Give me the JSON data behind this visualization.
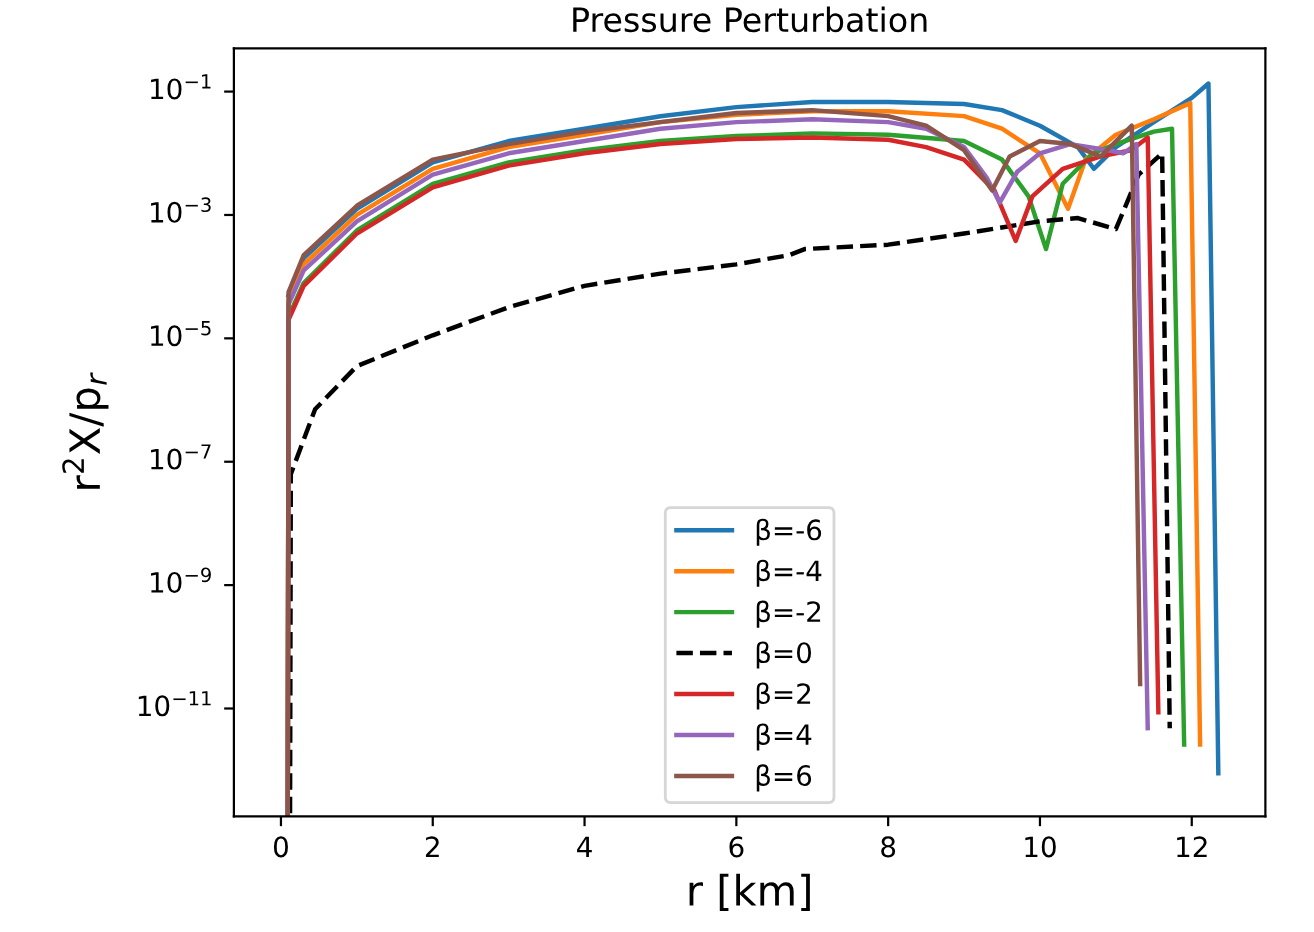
{
  "chart_data": {
    "type": "line",
    "title": "Pressure Perturbation",
    "xlabel": "r [km]",
    "ylabel": "r$^{2}$X/p$_{r}$",
    "log": "y",
    "xlim": [
      -0.62,
      12.97
    ],
    "ylim": [
      1.78e-13,
      0.5
    ],
    "xticks": [
      0,
      2,
      4,
      6,
      8,
      10,
      12
    ],
    "yticks": [
      {
        "value": 1e-11,
        "label": "10$^{−11}$"
      },
      {
        "value": 1e-09,
        "label": "10$^{−9}$"
      },
      {
        "value": 1e-07,
        "label": "10$^{−7}$"
      },
      {
        "value": 1e-05,
        "label": "10$^{−5}$"
      },
      {
        "value": 0.001,
        "label": "10$^{−3}$"
      },
      {
        "value": 0.1,
        "label": "10$^{−1}$"
      }
    ],
    "grid": false,
    "legend": "bottom",
    "series": [
      {
        "name": "β=-6",
        "color": "#1f77b4",
        "line_style": "solid",
        "x": [
          0.1,
          0.3,
          1,
          2,
          3,
          4,
          5,
          6,
          7,
          8,
          9,
          9.5,
          10,
          10.5,
          10.71,
          11,
          11.5,
          12,
          12.22,
          12.35
        ],
        "values": [
          5e-05,
          0.0002,
          0.00126,
          0.0071,
          0.0158,
          0.025,
          0.0398,
          0.056,
          0.068,
          0.068,
          0.063,
          0.05,
          0.028,
          0.0126,
          0.0056,
          0.0126,
          0.032,
          0.079,
          0.135,
          8.9e-13
        ]
      },
      {
        "name": "β=-4",
        "color": "#ff7f0e",
        "line_style": "solid",
        "x": [
          0.09,
          0.1,
          0.3,
          1,
          2,
          3,
          4,
          5,
          6,
          7,
          8,
          9,
          9.5,
          10,
          10.37,
          10.6,
          11,
          11.5,
          11.98,
          12.11
        ],
        "values": [
          2e-13,
          4e-05,
          0.000158,
          0.001,
          0.0056,
          0.0126,
          0.02,
          0.032,
          0.042,
          0.048,
          0.048,
          0.04,
          0.025,
          0.01,
          0.00126,
          0.0079,
          0.02,
          0.0355,
          0.065,
          2.6e-12
        ]
      },
      {
        "name": "β=-2",
        "color": "#2ca02c",
        "line_style": "solid",
        "x": [
          0.09,
          0.1,
          0.3,
          1,
          2,
          3,
          4,
          5,
          6,
          7,
          8,
          9,
          9.5,
          9.85,
          10.08,
          10.3,
          10.7,
          11,
          11.5,
          11.74,
          11.9
        ],
        "values": [
          2e-13,
          2.24e-05,
          7.9e-05,
          0.00056,
          0.0032,
          0.0071,
          0.0112,
          0.0158,
          0.019,
          0.021,
          0.02,
          0.0158,
          0.0079,
          0.002,
          0.00028,
          0.0032,
          0.01,
          0.0141,
          0.0224,
          0.025,
          2.6e-12
        ]
      },
      {
        "name": "β=0",
        "color": "#000000",
        "line_style": "dashed",
        "x": [
          0.12,
          0.13,
          0.45,
          1,
          2,
          3,
          4,
          5,
          6,
          6.7,
          6.9,
          8,
          9,
          10,
          10.5,
          11,
          11.3,
          11.61,
          11.71
        ],
        "values": [
          2e-13,
          6.3e-08,
          7.1e-07,
          3.55e-06,
          1.12e-05,
          3.2e-05,
          7.1e-05,
          0.000112,
          0.000158,
          0.000224,
          0.00028,
          0.00033,
          0.0005,
          0.00079,
          0.00089,
          0.00059,
          0.0045,
          0.01,
          4.8e-12
        ]
      },
      {
        "name": "β=2",
        "color": "#d62728",
        "line_style": "solid",
        "x": [
          0.09,
          0.1,
          0.3,
          1,
          2,
          3,
          4,
          5,
          6,
          7,
          8,
          8.5,
          9,
          9.4,
          9.68,
          9.9,
          10.3,
          10.8,
          11.2,
          11.42,
          11.56
        ],
        "values": [
          2e-13,
          2e-05,
          7.1e-05,
          0.0005,
          0.0028,
          0.0063,
          0.01,
          0.0141,
          0.017,
          0.018,
          0.0166,
          0.0126,
          0.0079,
          0.0025,
          0.00038,
          0.002,
          0.0056,
          0.0089,
          0.0112,
          0.018,
          8.7e-12
        ]
      },
      {
        "name": "β=4",
        "color": "#9467bd",
        "line_style": "solid",
        "x": [
          0.09,
          0.1,
          0.3,
          1,
          2,
          3,
          4,
          5,
          6,
          7,
          8,
          8.5,
          9,
          9.3,
          9.47,
          9.7,
          10,
          10.4,
          10.9,
          11.1,
          11.27,
          11.42
        ],
        "values": [
          2e-13,
          3.55e-05,
          0.000126,
          0.00079,
          0.0045,
          0.01,
          0.0158,
          0.025,
          0.032,
          0.0355,
          0.032,
          0.025,
          0.0126,
          0.004,
          0.00158,
          0.005,
          0.01,
          0.0141,
          0.0112,
          0.01,
          0.0141,
          4.8e-12
        ]
      },
      {
        "name": "β=6",
        "color": "#8c564b",
        "line_style": "solid",
        "x": [
          0.09,
          0.1,
          0.3,
          1,
          2,
          3,
          4,
          5,
          6,
          7,
          8,
          8.5,
          9,
          9.37,
          9.6,
          10,
          10.4,
          10.8,
          11.21,
          11.32
        ],
        "values": [
          2e-13,
          5.6e-05,
          0.000224,
          0.00141,
          0.0079,
          0.0141,
          0.0224,
          0.032,
          0.045,
          0.05,
          0.04,
          0.028,
          0.0112,
          0.0025,
          0.0089,
          0.0158,
          0.0141,
          0.0089,
          0.028,
          2.5e-11
        ]
      }
    ]
  }
}
